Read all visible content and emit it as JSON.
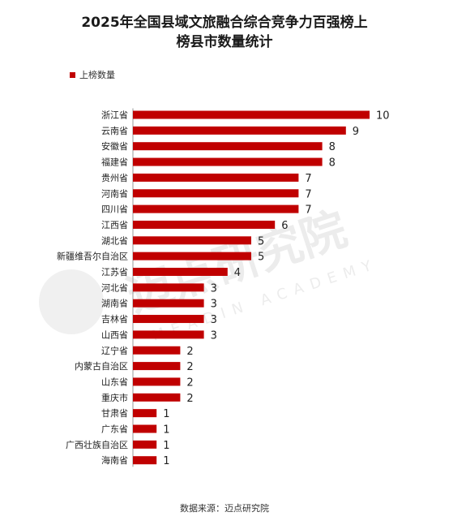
{
  "chart_data": {
    "type": "bar",
    "orientation": "horizontal",
    "title_line1": "2025年全国县域文旅融合综合竞争力百强榜上",
    "title_line2": "榜县市数量统计",
    "legend": "上榜数量",
    "bar_color": "#c00000",
    "categories": [
      "浙江省",
      "云南省",
      "安徽省",
      "福建省",
      "贵州省",
      "河南省",
      "四川省",
      "江西省",
      "湖北省",
      "新疆维吾尔自治区",
      "江苏省",
      "河北省",
      "湖南省",
      "吉林省",
      "山西省",
      "辽宁省",
      "内蒙古自治区",
      "山东省",
      "重庆市",
      "甘肃省",
      "广东省",
      "广西壮族自治区",
      "海南省"
    ],
    "series": [
      {
        "name": "上榜数量",
        "values": [
          10,
          9,
          8,
          8,
          7,
          7,
          7,
          6,
          5,
          5,
          4,
          3,
          3,
          3,
          3,
          2,
          2,
          2,
          2,
          1,
          1,
          1,
          1
        ]
      }
    ],
    "xlim": [
      0,
      10
    ],
    "grid": false
  },
  "source": "数据来源：迈点研究院",
  "watermark": {
    "cn": "迈点研究院",
    "en": "MEADIN ACADEMY"
  }
}
